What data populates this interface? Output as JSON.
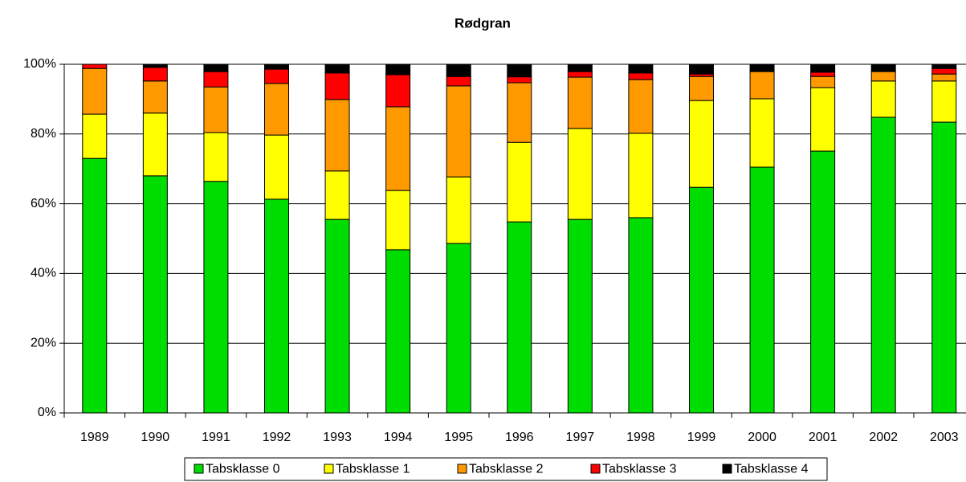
{
  "chart_data": {
    "type": "stacked_bar",
    "title": "Rødgran",
    "categories": [
      "1989",
      "1990",
      "1991",
      "1992",
      "1993",
      "1994",
      "1995",
      "1996",
      "1997",
      "1998",
      "1999",
      "2000",
      "2001",
      "2002",
      "2003"
    ],
    "series": [
      {
        "name": "Tabsklasse 0",
        "color": "#00dd00",
        "values": [
          73,
          68,
          66.4,
          61.3,
          55.5,
          46.8,
          48.6,
          54.8,
          55.5,
          56,
          64.7,
          70.5,
          75.1,
          84.8,
          83.4
        ]
      },
      {
        "name": "Tabsklasse 1",
        "color": "#ffff00",
        "values": [
          12.7,
          18,
          14,
          18.4,
          13.9,
          17,
          19.1,
          22.8,
          26.1,
          24.2,
          24.9,
          19.6,
          18.2,
          10.4,
          11.8
        ]
      },
      {
        "name": "Tabsklasse 2",
        "color": "#ff9900",
        "values": [
          13.1,
          9.2,
          13.1,
          14.8,
          20.5,
          24,
          26.1,
          17.1,
          14.7,
          15.4,
          6.9,
          7.8,
          3.2,
          2.7,
          2
        ]
      },
      {
        "name": "Tabsklasse 3",
        "color": "#ff0000",
        "values": [
          1.2,
          3.9,
          4.4,
          4.1,
          7.6,
          9.2,
          2.7,
          1.7,
          1.6,
          1.9,
          0.7,
          0,
          1.2,
          0,
          1.6
        ]
      },
      {
        "name": "Tabsklasse 4",
        "color": "#000000",
        "values": [
          0,
          0.9,
          2.1,
          1.4,
          2.5,
          3,
          3.5,
          3.6,
          2.1,
          2.5,
          2.8,
          2.1,
          2.3,
          2.1,
          1.2
        ]
      }
    ],
    "ylim": [
      0,
      100
    ],
    "yticks": [
      {
        "value": 0,
        "label": "0%"
      },
      {
        "value": 20,
        "label": "20%"
      },
      {
        "value": 40,
        "label": "40%"
      },
      {
        "value": 60,
        "label": "60%"
      },
      {
        "value": 80,
        "label": "80%"
      },
      {
        "value": 100,
        "label": "100%"
      }
    ],
    "grid": true,
    "legend": "bottom"
  }
}
